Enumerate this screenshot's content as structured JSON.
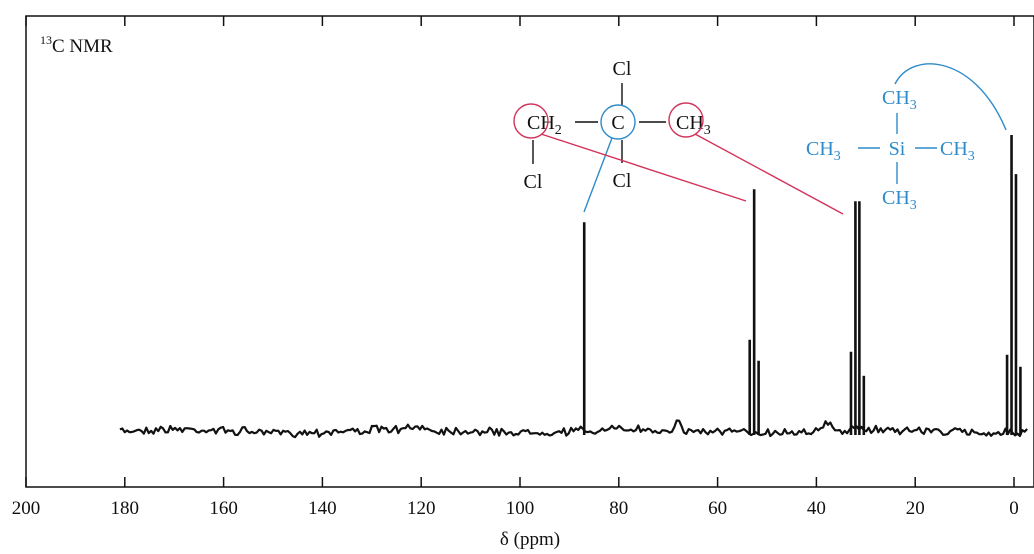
{
  "chart_data": {
    "type": "line",
    "title": "13C NMR",
    "title_superscript": "13",
    "title_rest": "C NMR",
    "xlabel": "δ (ppm)",
    "xlim": [
      200,
      -3
    ],
    "x_reversed": true,
    "x_ticks": [
      200,
      180,
      160,
      140,
      120,
      100,
      80,
      60,
      40,
      20,
      0
    ],
    "x_tick_labels": [
      "200",
      "180",
      "160",
      "140",
      "120",
      "100",
      "80",
      "60",
      "40",
      "20",
      "0"
    ],
    "ylim": [
      0,
      1
    ],
    "peaks": [
      {
        "carbon": "C (CCl2)",
        "ppm": 87,
        "multiplicity": "singlet",
        "lines": [
          {
            "ppm": 87.0,
            "height": 0.7
          }
        ]
      },
      {
        "carbon": "CH2Cl",
        "ppm": 52.6,
        "multiplicity": "triplet",
        "lines": [
          {
            "ppm": 53.5,
            "height": 0.31
          },
          {
            "ppm": 52.6,
            "height": 0.81
          },
          {
            "ppm": 51.7,
            "height": 0.24
          }
        ]
      },
      {
        "carbon": "CH3",
        "ppm": 31.6,
        "multiplicity": "quartet",
        "lines": [
          {
            "ppm": 33.0,
            "height": 0.27
          },
          {
            "ppm": 32.1,
            "height": 0.77
          },
          {
            "ppm": 31.3,
            "height": 0.77
          },
          {
            "ppm": 30.4,
            "height": 0.19
          }
        ]
      },
      {
        "carbon": "TMS (CH3)",
        "ppm": 0,
        "multiplicity": "quartet",
        "lines": [
          {
            "ppm": 1.4,
            "height": 0.26
          },
          {
            "ppm": 0.5,
            "height": 0.99
          },
          {
            "ppm": -0.4,
            "height": 0.86
          },
          {
            "ppm": -1.3,
            "height": 0.22
          }
        ]
      }
    ],
    "baseline_range_ppm": [
      181,
      -3
    ]
  },
  "molecule_1": {
    "top": "Cl",
    "left_group": "CH",
    "left_sub": "2",
    "center": "C",
    "right_group": "CH",
    "right_sub": "3",
    "bottom_left": "Cl",
    "bottom_center": "Cl"
  },
  "molecule_2": {
    "top": "CH",
    "top_sub": "3",
    "left": "CH",
    "left_sub": "3",
    "center": "Si",
    "right": "CH",
    "right_sub": "3",
    "bottom": "CH",
    "bottom_sub": "3"
  },
  "colors": {
    "spectrum": "#111111",
    "blue": "#2e8bc9",
    "red": "#d3325a"
  }
}
